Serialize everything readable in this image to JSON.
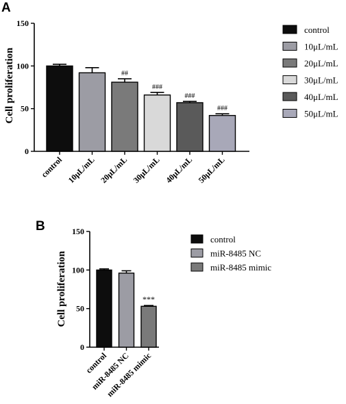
{
  "chart_data": [
    {
      "panel": "A",
      "type": "bar",
      "ylabel": "Cell proliferation",
      "ylim": [
        0,
        150
      ],
      "yticks": [
        0,
        50,
        100,
        150
      ],
      "categories": [
        "control",
        "10μL/mL",
        "20μL/mL",
        "30μL/mL",
        "40μL/mL",
        "50μL/mL"
      ],
      "values": [
        100,
        92,
        81,
        66,
        57,
        42
      ],
      "errors": [
        2,
        6,
        4,
        3,
        1.5,
        2
      ],
      "annotations": [
        "",
        "",
        "##",
        "###",
        "###",
        "###"
      ],
      "colors": [
        "#0d0d0d",
        "#9c9ca4",
        "#7a7a7a",
        "#d9d9d9",
        "#5a5a5a",
        "#a8a8b8"
      ],
      "legend": [
        "control",
        "10μL/mL",
        "20μL/mL",
        "30μL/mL",
        "40μL/mL",
        "50μL/mL"
      ],
      "legend_position": "right"
    },
    {
      "panel": "B",
      "type": "bar",
      "ylabel": "Cell proliferation",
      "ylim": [
        0,
        150
      ],
      "yticks": [
        0,
        50,
        100,
        150
      ],
      "categories": [
        "control",
        "miR-8485 NC",
        "miR-8485 mimic"
      ],
      "values": [
        100,
        96,
        53
      ],
      "errors": [
        1.5,
        3,
        1
      ],
      "annotations": [
        "",
        "",
        "***"
      ],
      "colors": [
        "#0d0d0d",
        "#9c9ca4",
        "#7a7a7a"
      ],
      "legend": [
        "control",
        "miR-8485 NC",
        "miR-8485 mimic"
      ],
      "legend_position": "right"
    }
  ]
}
